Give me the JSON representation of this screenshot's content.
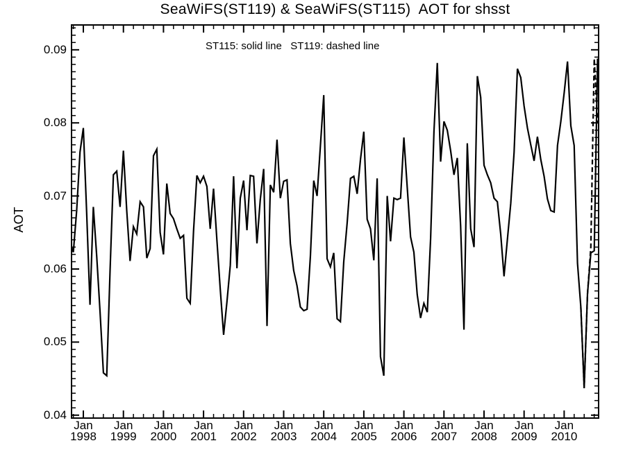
{
  "chart_data": {
    "type": "line",
    "title": "SeaWiFS(ST119) & SeaWiFS(ST115)  AOT for shsst",
    "legend_text": "ST115: solid line   ST119: dashed line",
    "ylabel": "AOT",
    "colors": {
      "line": "#000000",
      "text": "#000000",
      "background": "#ffffff"
    },
    "x_axis": {
      "month_label": "Jan",
      "years": [
        1998,
        1999,
        2000,
        2001,
        2002,
        2003,
        2004,
        2005,
        2006,
        2007,
        2008,
        2009,
        2010
      ],
      "t_min": -3.54,
      "t_max": 154.32,
      "major_step": 12,
      "minor_step": 3
    },
    "y_axis": {
      "v_min": 0.0396,
      "v_max": 0.0934,
      "major_values": [
        0.04,
        0.05,
        0.06,
        0.07,
        0.08,
        0.09
      ],
      "majors": [
        "0.04",
        "0.05",
        "0.06",
        "0.07",
        "0.08",
        "0.09"
      ],
      "minor_step": 0.001
    },
    "series": [
      {
        "name": "ST115",
        "style": "solid",
        "start_t": -4,
        "values": [
          0.0637,
          0.0623,
          0.068,
          0.076,
          0.0793,
          0.0677,
          0.0551,
          0.0685,
          0.0617,
          0.0541,
          0.0458,
          0.0454,
          0.0598,
          0.0729,
          0.0734,
          0.0685,
          0.0762,
          0.068,
          0.0611,
          0.0658,
          0.0648,
          0.0692,
          0.0685,
          0.0615,
          0.0628,
          0.0755,
          0.0764,
          0.065,
          0.062,
          0.0717,
          0.0676,
          0.0669,
          0.0655,
          0.0642,
          0.0646,
          0.056,
          0.0553,
          0.0652,
          0.0728,
          0.0718,
          0.0727,
          0.0713,
          0.0655,
          0.071,
          0.064,
          0.0572,
          0.051,
          0.0555,
          0.0605,
          0.0727,
          0.0601,
          0.0697,
          0.0721,
          0.0653,
          0.0728,
          0.0727,
          0.0635,
          0.0695,
          0.0737,
          0.0522,
          0.0715,
          0.0705,
          0.0777,
          0.0697,
          0.072,
          0.0722,
          0.0635,
          0.0598,
          0.0577,
          0.0548,
          0.0543,
          0.0545,
          0.0618,
          0.0721,
          0.07,
          0.0769,
          0.0838,
          0.0614,
          0.0603,
          0.0622,
          0.0532,
          0.0528,
          0.061,
          0.0663,
          0.0724,
          0.0727,
          0.0703,
          0.075,
          0.0788,
          0.0668,
          0.0655,
          0.0612,
          0.0724,
          0.048,
          0.0454,
          0.07,
          0.0638,
          0.0697,
          0.0695,
          0.0697,
          0.078,
          0.0712,
          0.0644,
          0.0623,
          0.0565,
          0.0533,
          0.0553,
          0.0541,
          0.0642,
          0.0788,
          0.0882,
          0.0747,
          0.0802,
          0.079,
          0.0762,
          0.0729,
          0.0752,
          0.0659,
          0.0517,
          0.0772,
          0.0655,
          0.063,
          0.0864,
          0.0835,
          0.0742,
          0.0729,
          0.0718,
          0.0697,
          0.0692,
          0.0648,
          0.059,
          0.064,
          0.069,
          0.076,
          0.0874,
          0.0862,
          0.0823,
          0.0793,
          0.077,
          0.0748,
          0.0781,
          0.075,
          0.0727,
          0.0696,
          0.068,
          0.0678,
          0.0769,
          0.0802,
          0.0841,
          0.0884,
          0.0796,
          0.0769,
          0.0608,
          0.0548,
          0.0437,
          0.0566,
          0.0622,
          0.0625,
          0.0888
        ]
      },
      {
        "name": "ST119",
        "style": "dashed",
        "start_t": 149,
        "values": [
          0.0548,
          0.0437,
          0.0566,
          0.063,
          0.0888,
          0.08
        ]
      }
    ]
  }
}
